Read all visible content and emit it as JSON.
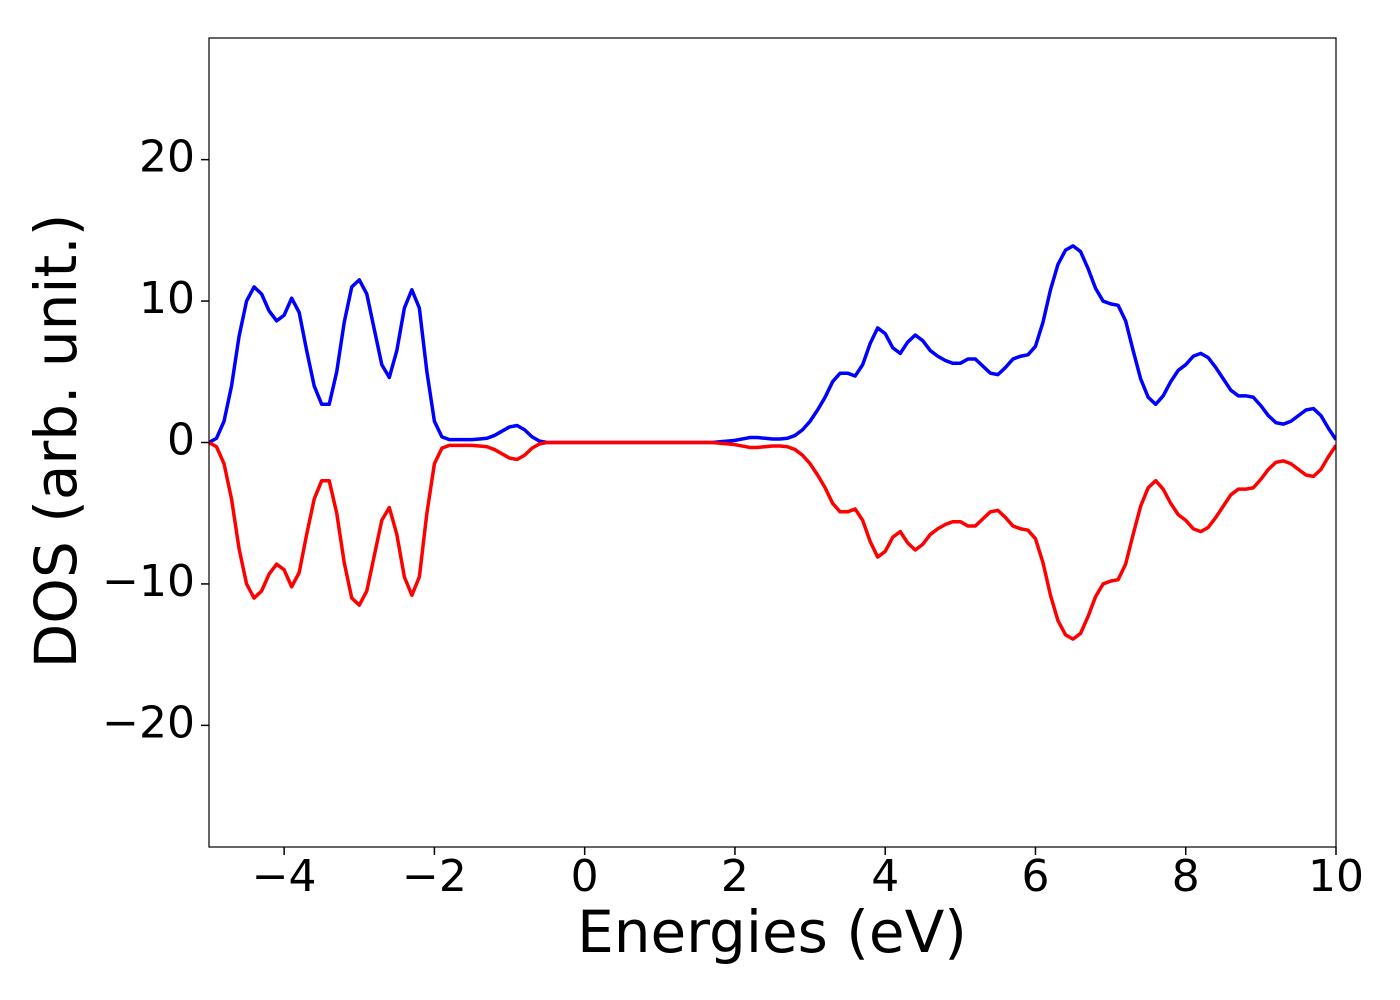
{
  "chart_data": {
    "type": "line",
    "xlabel": "Energies (eV)",
    "ylabel": "DOS (arb. unit.)",
    "x": [
      -5,
      -4.9,
      -4.8,
      -4.7,
      -4.6,
      -4.5,
      -4.4,
      -4.3,
      -4.2,
      -4.1,
      -4,
      -3.9,
      -3.8,
      -3.7,
      -3.6,
      -3.5,
      -3.4,
      -3.3,
      -3.2,
      -3.1,
      -3,
      -2.9,
      -2.8,
      -2.7,
      -2.6,
      -2.5,
      -2.4,
      -2.3,
      -2.2,
      -2.1,
      -2,
      -1.9,
      -1.8,
      -1.7,
      -1.6,
      -1.5,
      -1.4,
      -1.3,
      -1.2,
      -1.1,
      -1,
      -0.9,
      -0.8,
      -0.7,
      -0.6,
      -0.5,
      -0.4,
      -0.3,
      -0.2,
      -0.1,
      0,
      0.1,
      0.2,
      0.3,
      0.4,
      0.5,
      0.6,
      0.7,
      0.8,
      0.9,
      1,
      1.1,
      1.2,
      1.3,
      1.4,
      1.5,
      1.6,
      1.7,
      1.8,
      1.9,
      2,
      2.1,
      2.2,
      2.3,
      2.4,
      2.5,
      2.6,
      2.7,
      2.8,
      2.9,
      3,
      3.1,
      3.2,
      3.3,
      3.4,
      3.5,
      3.6,
      3.7,
      3.8,
      3.9,
      4,
      4.1,
      4.2,
      4.3,
      4.4,
      4.5,
      4.6,
      4.7,
      4.8,
      4.9,
      5,
      5.1,
      5.2,
      5.3,
      5.4,
      5.5,
      5.6,
      5.7,
      5.8,
      5.9,
      6,
      6.1,
      6.2,
      6.3,
      6.4,
      6.5,
      6.6,
      6.7,
      6.8,
      6.9,
      7,
      7.1,
      7.2,
      7.3,
      7.4,
      7.5,
      7.6,
      7.7,
      7.8,
      7.9,
      8,
      8.1,
      8.2,
      8.3,
      8.4,
      8.5,
      8.6,
      8.7,
      8.8,
      8.9,
      9,
      9.1,
      9.2,
      9.3,
      9.4,
      9.5,
      9.6,
      9.7,
      9.8,
      9.9,
      10
    ],
    "series": [
      {
        "color": "#0000ff",
        "values": [
          0,
          0.3,
          1.5,
          4,
          7.5,
          10,
          11,
          10.5,
          9.3,
          8.6,
          9,
          10.2,
          9.2,
          6.5,
          4,
          2.7,
          2.7,
          5,
          8.5,
          11,
          11.5,
          10.5,
          8,
          5.5,
          4.6,
          6.5,
          9.5,
          10.8,
          9.5,
          5,
          1.5,
          0.4,
          0.2,
          0.2,
          0.2,
          0.2,
          0.25,
          0.3,
          0.5,
          0.8,
          1.1,
          1.2,
          0.9,
          0.4,
          0.1,
          0,
          0,
          0,
          0,
          0,
          0,
          0,
          0,
          0,
          0,
          0,
          0,
          0,
          0,
          0,
          0,
          0,
          0,
          0,
          0,
          0,
          0,
          0,
          0.05,
          0.1,
          0.15,
          0.25,
          0.35,
          0.35,
          0.3,
          0.25,
          0.25,
          0.3,
          0.5,
          0.9,
          1.5,
          2.3,
          3.2,
          4.3,
          4.9,
          4.9,
          4.7,
          5.5,
          7,
          8.1,
          7.7,
          6.7,
          6.3,
          7.1,
          7.6,
          7.2,
          6.5,
          6.1,
          5.8,
          5.6,
          5.6,
          5.9,
          5.9,
          5.4,
          4.9,
          4.8,
          5.3,
          5.9,
          6.1,
          6.2,
          6.8,
          8.5,
          10.8,
          12.6,
          13.6,
          13.9,
          13.5,
          12.3,
          10.9,
          10,
          9.8,
          9.7,
          8.6,
          6.5,
          4.5,
          3.2,
          2.7,
          3.3,
          4.3,
          5.1,
          5.5,
          6.1,
          6.3,
          6,
          5.3,
          4.5,
          3.7,
          3.3,
          3.3,
          3.2,
          2.6,
          1.9,
          1.4,
          1.3,
          1.5,
          1.9,
          2.3,
          2.4,
          1.9,
          1,
          0.2
        ]
      },
      {
        "color": "#ff0000",
        "values": [
          0,
          -0.3,
          -1.5,
          -4,
          -7.5,
          -10,
          -11,
          -10.5,
          -9.3,
          -8.6,
          -9,
          -10.2,
          -9.2,
          -6.5,
          -4,
          -2.7,
          -2.7,
          -5,
          -8.5,
          -11,
          -11.5,
          -10.5,
          -8,
          -5.5,
          -4.6,
          -6.5,
          -9.5,
          -10.8,
          -9.5,
          -5,
          -1.5,
          -0.4,
          -0.2,
          -0.2,
          -0.2,
          -0.2,
          -0.25,
          -0.3,
          -0.5,
          -0.8,
          -1.1,
          -1.2,
          -0.9,
          -0.4,
          -0.1,
          0,
          0,
          0,
          0,
          0,
          0,
          0,
          0,
          0,
          0,
          0,
          0,
          0,
          0,
          0,
          0,
          0,
          0,
          0,
          0,
          0,
          0,
          0,
          -0.05,
          -0.1,
          -0.15,
          -0.25,
          -0.35,
          -0.35,
          -0.3,
          -0.25,
          -0.25,
          -0.3,
          -0.5,
          -0.9,
          -1.5,
          -2.3,
          -3.2,
          -4.3,
          -4.9,
          -4.9,
          -4.7,
          -5.5,
          -7,
          -8.1,
          -7.7,
          -6.7,
          -6.3,
          -7.1,
          -7.6,
          -7.2,
          -6.5,
          -6.1,
          -5.8,
          -5.6,
          -5.6,
          -5.9,
          -5.9,
          -5.4,
          -4.9,
          -4.8,
          -5.3,
          -5.9,
          -6.1,
          -6.2,
          -6.8,
          -8.5,
          -10.8,
          -12.6,
          -13.6,
          -13.9,
          -13.5,
          -12.3,
          -10.9,
          -10,
          -9.8,
          -9.7,
          -8.6,
          -6.5,
          -4.5,
          -3.2,
          -2.7,
          -3.3,
          -4.3,
          -5.1,
          -5.5,
          -6.1,
          -6.3,
          -6,
          -5.3,
          -4.5,
          -3.7,
          -3.3,
          -3.3,
          -3.2,
          -2.6,
          -1.9,
          -1.4,
          -1.3,
          -1.5,
          -1.9,
          -2.3,
          -2.4,
          -1.9,
          -1,
          -0.2
        ]
      }
    ],
    "xlim": [
      -5,
      10
    ],
    "xticks": [
      {
        "value": -4,
        "label": "−4"
      },
      {
        "value": -2,
        "label": "−2"
      },
      0,
      2,
      4,
      6,
      8,
      10
    ],
    "ylim": [
      -28.6,
      28.6
    ],
    "yticks": [
      {
        "value": -20,
        "label": "−20"
      },
      {
        "value": -10,
        "label": "−10"
      },
      0,
      10,
      20
    ],
    "grid": false
  }
}
